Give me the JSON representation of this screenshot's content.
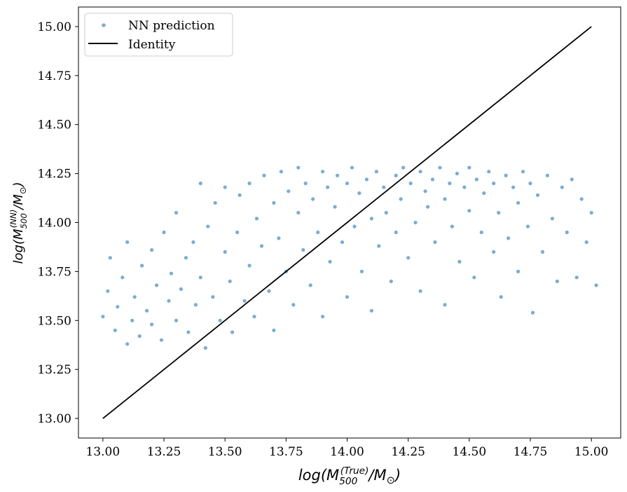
{
  "chart_data": {
    "type": "scatter",
    "xlabel": {
      "pre": "log(M",
      "sub": "500",
      "sup": "(True)",
      "post": "/M",
      "sun_sub": "⊙",
      "close": ")"
    },
    "ylabel": {
      "pre": "log(M",
      "sub": "500",
      "sup": "(NN)",
      "post": "/M",
      "sun_sub": "⊙",
      "close": ")"
    },
    "xlim": [
      12.9,
      15.12
    ],
    "ylim": [
      12.9,
      15.1
    ],
    "x_ticks": [
      "13.00",
      "13.25",
      "13.50",
      "13.75",
      "14.00",
      "14.25",
      "14.50",
      "14.75",
      "15.00"
    ],
    "y_ticks": [
      "13.00",
      "13.25",
      "13.50",
      "13.75",
      "14.00",
      "14.25",
      "14.50",
      "14.75",
      "15.00"
    ],
    "grid": false,
    "legend": {
      "placement": "top-left",
      "entries": [
        "NN prediction",
        "Identity"
      ]
    },
    "series": [
      {
        "name": "NN prediction",
        "kind": "scatter",
        "color": "#1f77b4",
        "points": [
          [
            13.0,
            13.52
          ],
          [
            13.02,
            13.65
          ],
          [
            13.03,
            13.82
          ],
          [
            13.05,
            13.45
          ],
          [
            13.06,
            13.57
          ],
          [
            13.08,
            13.72
          ],
          [
            13.1,
            13.38
          ],
          [
            13.1,
            13.9
          ],
          [
            13.12,
            13.5
          ],
          [
            13.13,
            13.62
          ],
          [
            13.15,
            13.42
          ],
          [
            13.16,
            13.78
          ],
          [
            13.18,
            13.55
          ],
          [
            13.2,
            13.48
          ],
          [
            13.2,
            13.86
          ],
          [
            13.22,
            13.68
          ],
          [
            13.24,
            13.4
          ],
          [
            13.25,
            13.95
          ],
          [
            13.27,
            13.6
          ],
          [
            13.28,
            13.74
          ],
          [
            13.3,
            13.5
          ],
          [
            13.3,
            14.05
          ],
          [
            13.32,
            13.66
          ],
          [
            13.34,
            13.82
          ],
          [
            13.35,
            13.44
          ],
          [
            13.37,
            13.9
          ],
          [
            13.38,
            13.58
          ],
          [
            13.4,
            14.2
          ],
          [
            13.4,
            13.72
          ],
          [
            13.42,
            13.36
          ],
          [
            13.43,
            13.98
          ],
          [
            13.45,
            13.62
          ],
          [
            13.46,
            14.1
          ],
          [
            13.48,
            13.5
          ],
          [
            13.5,
            13.85
          ],
          [
            13.5,
            14.18
          ],
          [
            13.52,
            13.7
          ],
          [
            13.53,
            13.44
          ],
          [
            13.55,
            13.95
          ],
          [
            13.56,
            14.14
          ],
          [
            13.58,
            13.6
          ],
          [
            13.6,
            13.78
          ],
          [
            13.6,
            14.2
          ],
          [
            13.62,
            13.52
          ],
          [
            13.63,
            14.02
          ],
          [
            13.65,
            13.88
          ],
          [
            13.66,
            14.24
          ],
          [
            13.68,
            13.65
          ],
          [
            13.7,
            14.1
          ],
          [
            13.7,
            13.45
          ],
          [
            13.72,
            13.92
          ],
          [
            13.73,
            14.26
          ],
          [
            13.75,
            13.75
          ],
          [
            13.76,
            14.16
          ],
          [
            13.78,
            13.58
          ],
          [
            13.8,
            14.05
          ],
          [
            13.8,
            14.28
          ],
          [
            13.82,
            13.86
          ],
          [
            13.83,
            14.2
          ],
          [
            13.85,
            13.68
          ],
          [
            13.86,
            14.12
          ],
          [
            13.88,
            13.95
          ],
          [
            13.9,
            14.26
          ],
          [
            13.9,
            13.52
          ],
          [
            13.92,
            14.18
          ],
          [
            13.93,
            13.8
          ],
          [
            13.95,
            14.08
          ],
          [
            13.96,
            14.24
          ],
          [
            13.98,
            13.9
          ],
          [
            14.0,
            14.2
          ],
          [
            14.0,
            13.62
          ],
          [
            14.02,
            14.28
          ],
          [
            14.03,
            13.98
          ],
          [
            14.05,
            14.15
          ],
          [
            14.06,
            13.75
          ],
          [
            14.08,
            14.22
          ],
          [
            14.1,
            14.02
          ],
          [
            14.1,
            13.55
          ],
          [
            14.12,
            14.26
          ],
          [
            14.13,
            13.88
          ],
          [
            14.15,
            14.18
          ],
          [
            14.16,
            14.05
          ],
          [
            14.18,
            13.7
          ],
          [
            14.2,
            14.24
          ],
          [
            14.2,
            13.95
          ],
          [
            14.22,
            14.12
          ],
          [
            14.23,
            14.28
          ],
          [
            14.25,
            13.82
          ],
          [
            14.26,
            14.2
          ],
          [
            14.28,
            14.0
          ],
          [
            14.3,
            14.26
          ],
          [
            14.3,
            13.65
          ],
          [
            14.32,
            14.16
          ],
          [
            14.33,
            14.08
          ],
          [
            14.35,
            14.22
          ],
          [
            14.36,
            13.9
          ],
          [
            14.38,
            14.28
          ],
          [
            14.4,
            14.12
          ],
          [
            14.4,
            13.58
          ],
          [
            14.42,
            14.2
          ],
          [
            14.43,
            13.98
          ],
          [
            14.45,
            14.25
          ],
          [
            14.46,
            13.8
          ],
          [
            14.48,
            14.18
          ],
          [
            14.5,
            14.06
          ],
          [
            14.5,
            14.28
          ],
          [
            14.52,
            13.72
          ],
          [
            14.53,
            14.22
          ],
          [
            14.55,
            13.95
          ],
          [
            14.56,
            14.15
          ],
          [
            14.58,
            14.26
          ],
          [
            14.6,
            13.85
          ],
          [
            14.6,
            14.2
          ],
          [
            14.62,
            14.05
          ],
          [
            14.63,
            13.62
          ],
          [
            14.65,
            14.24
          ],
          [
            14.66,
            13.92
          ],
          [
            14.68,
            14.18
          ],
          [
            14.7,
            14.1
          ],
          [
            14.7,
            13.75
          ],
          [
            14.72,
            14.26
          ],
          [
            14.74,
            13.98
          ],
          [
            14.75,
            14.2
          ],
          [
            14.76,
            13.54
          ],
          [
            14.78,
            14.14
          ],
          [
            14.8,
            13.85
          ],
          [
            14.82,
            14.24
          ],
          [
            14.84,
            14.02
          ],
          [
            14.86,
            13.7
          ],
          [
            14.88,
            14.18
          ],
          [
            14.9,
            13.95
          ],
          [
            14.92,
            14.22
          ],
          [
            14.94,
            13.72
          ],
          [
            14.96,
            14.12
          ],
          [
            14.98,
            13.9
          ],
          [
            15.0,
            14.05
          ],
          [
            15.02,
            13.68
          ]
        ]
      },
      {
        "name": "Identity",
        "kind": "line",
        "color": "#000000",
        "points": [
          [
            13.0,
            13.0
          ],
          [
            15.0,
            15.0
          ]
        ]
      }
    ]
  }
}
